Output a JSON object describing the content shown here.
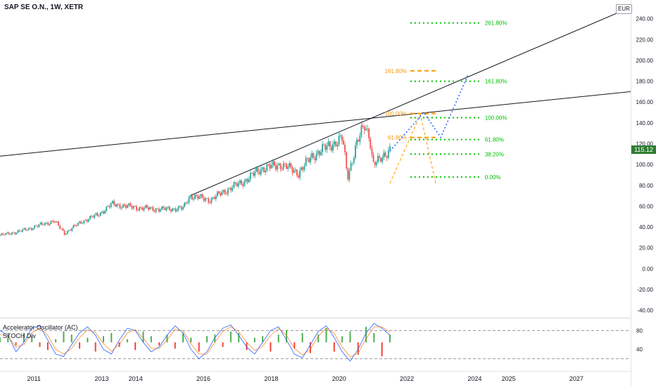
{
  "header": {
    "title": "SAP SE O.N., 1W, XETR",
    "currency": "EUR"
  },
  "last_price": "115.12",
  "indicators": {
    "ac_label": "Accelerator Oscillator (AC)",
    "stoch_label": "STOCH Div",
    "levels": [
      "80",
      "40"
    ]
  },
  "colors": {
    "up_candle": "#26a69a",
    "down_candle": "#ef5350",
    "fib_green": "#00c000",
    "fib_orange": "#ff9800",
    "projection_blue": "#2962ff",
    "trendline": "#131722",
    "price_tag": "#2e7d32"
  },
  "chart_data": {
    "type": "candlestick",
    "x_axis_labels": [
      "2011",
      "2013",
      "2014",
      "2016",
      "2018",
      "2020",
      "2022",
      "2024",
      "2025",
      "2027"
    ],
    "y_axis_labels": [
      "240.00",
      "220.00",
      "200.00",
      "180.00",
      "160.00",
      "140.00",
      "120.00",
      "100.00",
      "80.00",
      "60.00",
      "40.00",
      "20.00",
      "0.00",
      "-20.00",
      "-40.00"
    ],
    "ylim": [
      -47,
      258
    ],
    "xlim": [
      2010.0,
      2028.6
    ],
    "price_path": [
      [
        2010.0,
        32
      ],
      [
        2010.6,
        36
      ],
      [
        2011.2,
        42
      ],
      [
        2011.6,
        46
      ],
      [
        2011.9,
        34
      ],
      [
        2012.4,
        45
      ],
      [
        2012.9,
        52
      ],
      [
        2013.3,
        62
      ],
      [
        2013.7,
        60
      ],
      [
        2014.2,
        58
      ],
      [
        2014.8,
        57
      ],
      [
        2015.4,
        58
      ],
      [
        2015.6,
        70
      ],
      [
        2016.2,
        66
      ],
      [
        2016.6,
        74
      ],
      [
        2017.2,
        84
      ],
      [
        2017.7,
        96
      ],
      [
        2018.3,
        100
      ],
      [
        2018.8,
        92
      ],
      [
        2019.2,
        108
      ],
      [
        2019.7,
        118
      ],
      [
        2020.1,
        125
      ],
      [
        2020.25,
        88
      ],
      [
        2020.5,
        118
      ],
      [
        2020.75,
        138
      ],
      [
        2020.9,
        128
      ],
      [
        2021.0,
        100
      ],
      [
        2021.2,
        104
      ],
      [
        2021.4,
        112
      ],
      [
        2021.5,
        115.12
      ]
    ],
    "trendlines": [
      {
        "from": [
          2010.0,
          108
        ],
        "to": [
          2028.6,
          170
        ]
      },
      {
        "from": [
          2015.6,
          70
        ],
        "to": [
          2028.6,
          251
        ]
      }
    ],
    "fib_extension_green": [
      {
        "label": "261.80%",
        "value": 236
      },
      {
        "label": "161.80%",
        "value": 180
      },
      {
        "label": "100.00%",
        "value": 145
      },
      {
        "label": "61.80%",
        "value": 124
      },
      {
        "label": "38.20%",
        "value": 110
      },
      {
        "label": "0.00%",
        "value": 88
      }
    ],
    "fib_orange": [
      {
        "label": "161.80%",
        "value": 190
      },
      {
        "label": "100.00%",
        "value": 149
      },
      {
        "label": "61.80%",
        "value": 126
      }
    ],
    "projection_path": [
      [
        2021.5,
        113
      ],
      [
        2022.5,
        150
      ],
      [
        2023.0,
        126
      ],
      [
        2023.8,
        186
      ]
    ],
    "ac_bars": [
      3,
      5,
      -2,
      6,
      4,
      -3,
      -5,
      2,
      7,
      5,
      -4,
      3,
      -6,
      4,
      6,
      -3,
      2,
      -5,
      7,
      4,
      -2,
      5,
      -4,
      6,
      3,
      -6,
      4,
      5,
      -3,
      7,
      6,
      -5,
      3,
      4,
      -6,
      5,
      8,
      -4,
      6,
      -7,
      5,
      9,
      -6,
      4,
      7,
      -8,
      10,
      6,
      -9,
      5
    ],
    "stoch_k": [
      80,
      70,
      35,
      55,
      85,
      90,
      60,
      30,
      25,
      50,
      75,
      88,
      70,
      40,
      30,
      60,
      85,
      80,
      55,
      35,
      45,
      70,
      90,
      75,
      40,
      20,
      35,
      65,
      85,
      92,
      70,
      45,
      30,
      55,
      80,
      88,
      60,
      30,
      22,
      50,
      78,
      90,
      65,
      35,
      15,
      40,
      75,
      95,
      85,
      70
    ],
    "stoch_d": [
      72,
      68,
      45,
      50,
      75,
      86,
      70,
      40,
      30,
      42,
      65,
      82,
      76,
      52,
      36,
      50,
      75,
      82,
      64,
      42,
      42,
      60,
      82,
      80,
      52,
      30,
      30,
      55,
      78,
      88,
      78,
      55,
      38,
      46,
      70,
      84,
      70,
      42,
      28,
      40,
      68,
      85,
      74,
      45,
      24,
      32,
      62,
      88,
      88,
      76
    ]
  }
}
